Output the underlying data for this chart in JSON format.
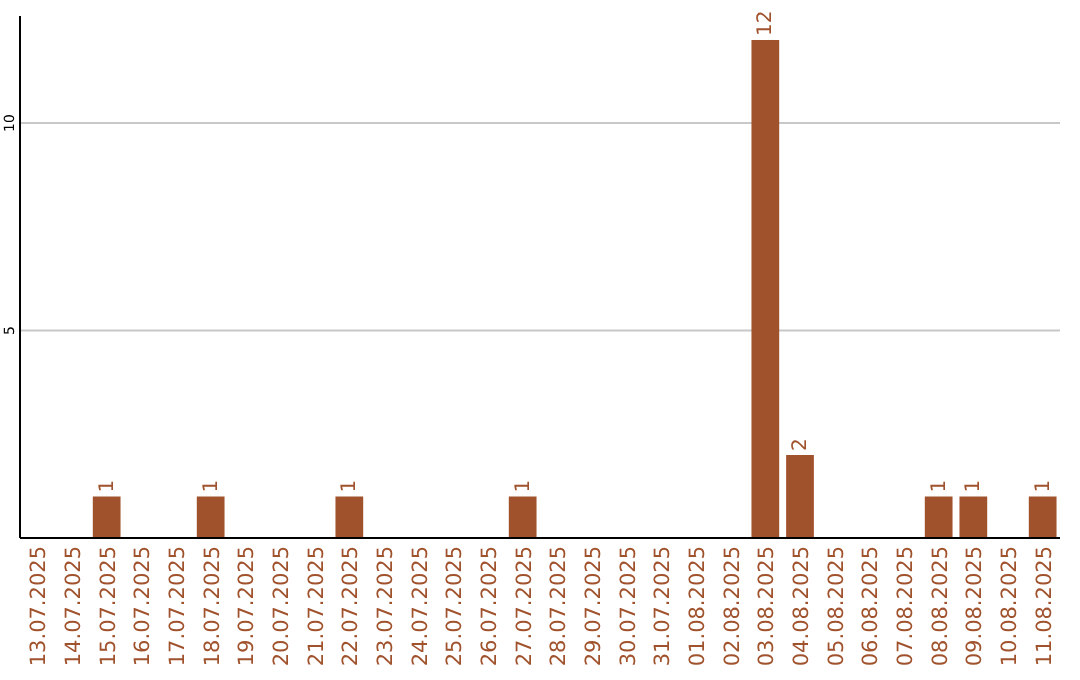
{
  "chart_data": {
    "type": "bar",
    "categories": [
      "13.07.2025",
      "14.07.2025",
      "15.07.2025",
      "16.07.2025",
      "17.07.2025",
      "18.07.2025",
      "19.07.2025",
      "20.07.2025",
      "21.07.2025",
      "22.07.2025",
      "23.07.2025",
      "24.07.2025",
      "25.07.2025",
      "26.07.2025",
      "27.07.2025",
      "28.07.2025",
      "29.07.2025",
      "30.07.2025",
      "31.07.2025",
      "01.08.2025",
      "02.08.2025",
      "03.08.2025",
      "04.08.2025",
      "05.08.2025",
      "06.08.2025",
      "07.08.2025",
      "08.08.2025",
      "09.08.2025",
      "10.08.2025",
      "11.08.2025"
    ],
    "values": [
      0,
      0,
      1,
      0,
      0,
      1,
      0,
      0,
      0,
      1,
      0,
      0,
      0,
      0,
      1,
      0,
      0,
      0,
      0,
      0,
      0,
      12,
      2,
      0,
      0,
      0,
      1,
      1,
      0,
      1
    ],
    "color": "#a0522d",
    "ylim": [
      0,
      12
    ],
    "yticks": [
      5,
      10
    ],
    "grid": "y",
    "value_labels": [
      null,
      null,
      "1",
      null,
      null,
      "1",
      null,
      null,
      null,
      "1",
      null,
      null,
      null,
      null,
      "1",
      null,
      null,
      null,
      null,
      null,
      null,
      "12",
      "2",
      null,
      null,
      null,
      "1",
      "1",
      null,
      "1"
    ]
  }
}
